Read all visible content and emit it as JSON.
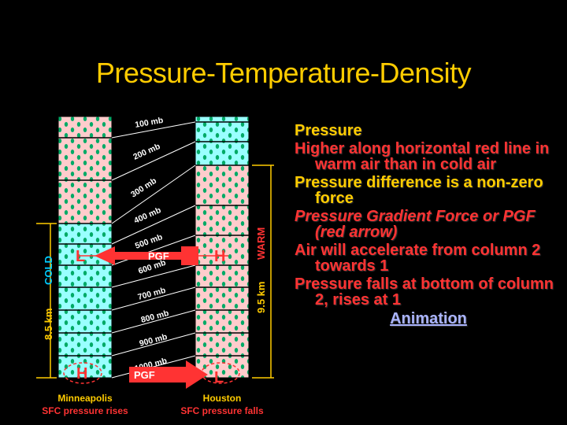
{
  "title": "Pressure-Temperature-Density",
  "pressure_levels": [
    "100 mb",
    "200 mb",
    "300 mb",
    "400 mb",
    "500 mb",
    "600 mb",
    "700 mb",
    "800 mb",
    "900 mb",
    "1000 mb"
  ],
  "left_column": {
    "vertical_label": "COLD",
    "height_label": "8.5 km",
    "city": "Minneapolis",
    "caption": "SFC pressure rises"
  },
  "right_column": {
    "vertical_label": "WARM",
    "height_label": "9.5 km",
    "city": "Houston",
    "caption": "SFC pressure falls"
  },
  "upper_arrow": {
    "label": "PGF",
    "left_letter": "L",
    "right_letter": "H"
  },
  "lower_arrow": {
    "label": "PGF",
    "left_letter": "H",
    "right_letter": "L"
  },
  "bullets": [
    {
      "text": "Pressure",
      "color": "yellow",
      "italic": false,
      "indent": false
    },
    {
      "text": "Higher along horizontal red line in warm air than in cold air",
      "color": "red",
      "italic": false,
      "indent": true
    },
    {
      "text": "Pressure difference is a non-zero force",
      "color": "yellow",
      "italic": false,
      "indent": true
    },
    {
      "text": "Pressure Gradient Force or PGF (red arrow)",
      "color": "red",
      "italic": true,
      "indent": true
    },
    {
      "text": "Air will accelerate from column 2 towards 1",
      "color": "red",
      "italic": false,
      "indent": true
    },
    {
      "text": "Pressure falls at bottom of column 2, rises at 1",
      "color": "red",
      "italic": false,
      "indent": true
    }
  ],
  "animation_link": "Animation",
  "colors": {
    "title": "#ffcc00",
    "pink_layer": "#ffcccc",
    "cyan_layer": "#99ffff",
    "dot": "#00aa66",
    "arrow": "#ff3333",
    "link": "#aab4ff"
  }
}
